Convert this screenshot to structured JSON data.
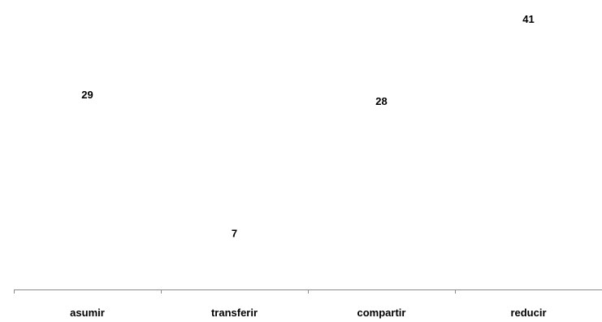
{
  "chart_data": {
    "type": "bar",
    "categories": [
      "asumir",
      "transferir",
      "compartir",
      "reducir"
    ],
    "values": [
      29,
      7,
      28,
      41
    ],
    "title": "",
    "xlabel": "",
    "ylabel": "",
    "ylim": [
      0,
      45
    ],
    "grid": false,
    "bars_visible": false,
    "data_labels": true,
    "colors": {
      "axis": "#8c8c8c",
      "text": "#000000",
      "background": "#ffffff"
    }
  }
}
